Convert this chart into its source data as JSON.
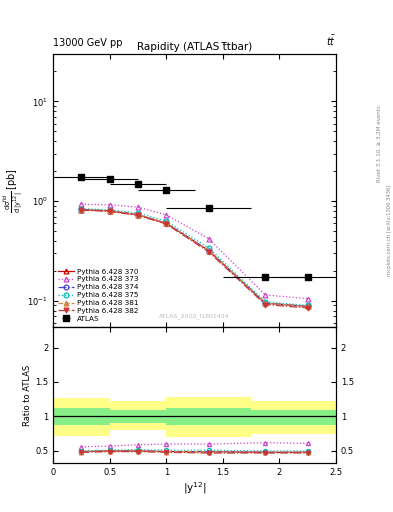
{
  "title_top": "13000 GeV pp",
  "title_right": "tt̅",
  "plot_title": "Rapidity (ATLAS t̅tbar)",
  "watermark": "ATLAS_2020_I1801434",
  "right_label_top": "Rivet 3.1.10, ≥ 3.2M events",
  "right_label_bot": "mcplots.cern.ch [arXiv:1306.3436]",
  "ylabel_ratio": "Ratio to ATLAS",
  "xdata": [
    0.25,
    0.5,
    0.75,
    1.0,
    1.375,
    1.875,
    2.25
  ],
  "xerr": [
    0.25,
    0.25,
    0.25,
    0.25,
    0.375,
    0.375,
    0.25
  ],
  "atlas_y": [
    1.75,
    1.65,
    1.5,
    1.3,
    0.85,
    0.175,
    0.175
  ],
  "py370_y": [
    0.82,
    0.8,
    0.73,
    0.6,
    0.32,
    0.095,
    0.088
  ],
  "py373_y": [
    0.93,
    0.92,
    0.87,
    0.73,
    0.42,
    0.115,
    0.105
  ],
  "py374_y": [
    0.82,
    0.8,
    0.73,
    0.6,
    0.32,
    0.095,
    0.088
  ],
  "py375_y": [
    0.84,
    0.82,
    0.76,
    0.63,
    0.34,
    0.098,
    0.09
  ],
  "py381_y": [
    0.82,
    0.8,
    0.73,
    0.6,
    0.32,
    0.095,
    0.088
  ],
  "py382_y": [
    0.81,
    0.79,
    0.72,
    0.59,
    0.31,
    0.092,
    0.085
  ],
  "ratio_py370": [
    0.49,
    0.5,
    0.5,
    0.49,
    0.49,
    0.48,
    0.48
  ],
  "ratio_py373": [
    0.56,
    0.57,
    0.59,
    0.6,
    0.6,
    0.62,
    0.61
  ],
  "ratio_py374": [
    0.49,
    0.5,
    0.5,
    0.49,
    0.49,
    0.48,
    0.48
  ],
  "ratio_py375": [
    0.5,
    0.51,
    0.52,
    0.51,
    0.51,
    0.5,
    0.5
  ],
  "ratio_py381": [
    0.49,
    0.5,
    0.5,
    0.49,
    0.49,
    0.48,
    0.48
  ],
  "ratio_py382": [
    0.48,
    0.49,
    0.49,
    0.48,
    0.47,
    0.47,
    0.47
  ],
  "bin_edges": [
    0.0,
    0.5,
    1.0,
    1.75,
    2.5
  ],
  "green_low": [
    0.87,
    0.9,
    0.87,
    0.87
  ],
  "green_high": [
    1.13,
    1.1,
    1.13,
    1.1
  ],
  "yellow_low": [
    0.72,
    0.8,
    0.7,
    0.75
  ],
  "yellow_high": [
    1.27,
    1.23,
    1.28,
    1.23
  ],
  "color_370": "#cc0000",
  "color_373": "#cc44cc",
  "color_374": "#4444cc",
  "color_375": "#00bbbb",
  "color_381": "#cc8844",
  "color_382": "#cc3333",
  "ylim_main": [
    0.055,
    30
  ],
  "ylim_ratio": [
    0.32,
    2.3
  ],
  "xlim": [
    0,
    2.5
  ]
}
